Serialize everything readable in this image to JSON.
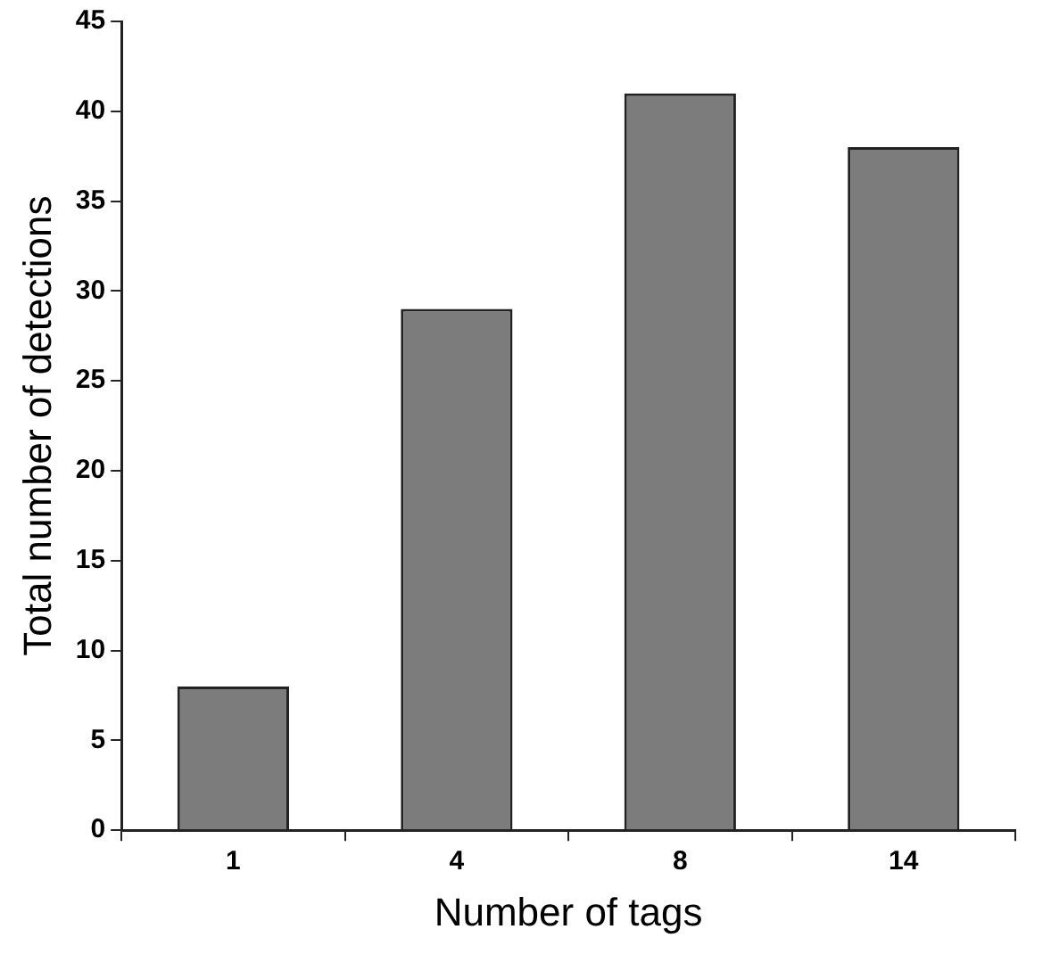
{
  "chart_data": {
    "type": "bar",
    "xlabel": "Number of tags",
    "ylabel": "Total number of detections",
    "categories": [
      "1",
      "4",
      "8",
      "14"
    ],
    "values": [
      8,
      29,
      41,
      38
    ],
    "color": "#7c7c7c",
    "ylim": [
      0,
      45
    ],
    "yticks": [
      0,
      5,
      10,
      15,
      20,
      25,
      30,
      35,
      40,
      45
    ],
    "grid": false,
    "legend": false
  }
}
